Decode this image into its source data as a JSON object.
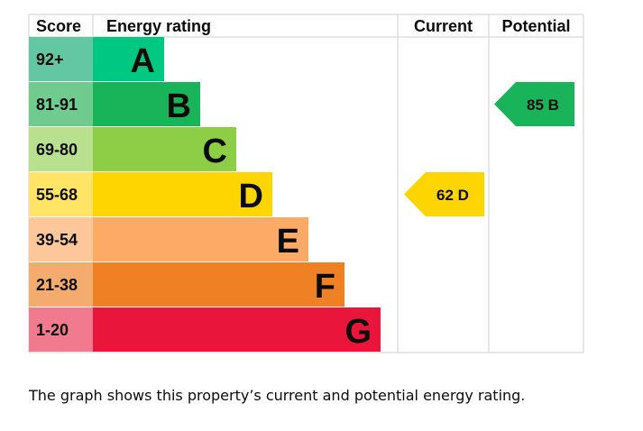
{
  "chart_data": {
    "type": "bar",
    "headers": {
      "score": "Score",
      "rating": "Energy rating",
      "current": "Current",
      "potential": "Potential"
    },
    "bands": [
      {
        "letter": "A",
        "range": "92+",
        "color": "#00c781",
        "light": "#64c7a4"
      },
      {
        "letter": "B",
        "range": "81-91",
        "color": "#19b459",
        "light": "#6fcb8e"
      },
      {
        "letter": "C",
        "range": "69-80",
        "color": "#8dce46",
        "light": "#b9e08f"
      },
      {
        "letter": "D",
        "range": "55-68",
        "color": "#ffd500",
        "light": "#ffe466"
      },
      {
        "letter": "E",
        "range": "39-54",
        "color": "#fcaa65",
        "light": "#fdc79a"
      },
      {
        "letter": "F",
        "range": "21-38",
        "color": "#ef8023",
        "light": "#f4ab6e"
      },
      {
        "letter": "G",
        "range": "1-20",
        "color": "#e9153b",
        "light": "#f27a8f"
      }
    ],
    "current": {
      "score": 62,
      "band": "D",
      "label": "62  D"
    },
    "potential": {
      "score": 85,
      "band": "B",
      "label": "85  B"
    }
  },
  "caption": "The graph shows this property’s current and potential energy rating."
}
